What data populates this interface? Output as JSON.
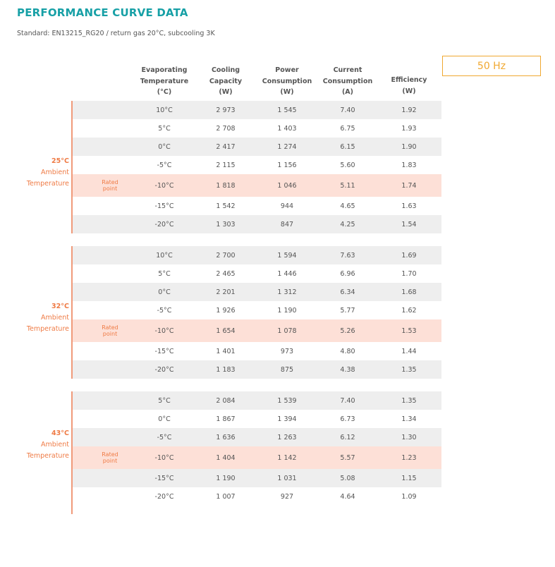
{
  "title": "PERFORMANCE CURVE DATA",
  "subtitle": "Standard: EN13215_RG20 / return gas 20°C, subcooling 3K",
  "frequency": "50 Hz",
  "rated_label": [
    "Rated",
    "point"
  ],
  "headers": [
    {
      "lines": [
        "Evaporating",
        "Temperature",
        "(°C)"
      ]
    },
    {
      "lines": [
        "Cooling",
        "Capacity",
        "(W)"
      ]
    },
    {
      "lines": [
        "Power",
        "Consumption",
        "(W)"
      ]
    },
    {
      "lines": [
        "Current",
        "Consumption",
        "(A)"
      ]
    },
    {
      "lines": [
        "Efficiency",
        "(W)"
      ]
    }
  ],
  "groups": [
    {
      "temp": "25°C",
      "label_lines": [
        "Ambient",
        "Temperature"
      ],
      "rows": [
        {
          "evap": "10°C",
          "cap": "2 973",
          "pow": "1 545",
          "cur": "7.40",
          "eff": "1.92",
          "rated": false
        },
        {
          "evap": "5°C",
          "cap": "2 708",
          "pow": "1 403",
          "cur": "6.75",
          "eff": "1.93",
          "rated": false
        },
        {
          "evap": "0°C",
          "cap": "2 417",
          "pow": "1 274",
          "cur": "6.15",
          "eff": "1.90",
          "rated": false
        },
        {
          "evap": "-5°C",
          "cap": "2 115",
          "pow": "1 156",
          "cur": "5.60",
          "eff": "1.83",
          "rated": false
        },
        {
          "evap": "-10°C",
          "cap": "1 818",
          "pow": "1 046",
          "cur": "5.11",
          "eff": "1.74",
          "rated": true
        },
        {
          "evap": "-15°C",
          "cap": "1 542",
          "pow": "944",
          "cur": "4.65",
          "eff": "1.63",
          "rated": false
        },
        {
          "evap": "-20°C",
          "cap": "1 303",
          "pow": "847",
          "cur": "4.25",
          "eff": "1.54",
          "rated": false
        }
      ]
    },
    {
      "temp": "32°C",
      "label_lines": [
        "Ambient",
        "Temperature"
      ],
      "rows": [
        {
          "evap": "10°C",
          "cap": "2 700",
          "pow": "1 594",
          "cur": "7.63",
          "eff": "1.69",
          "rated": false
        },
        {
          "evap": "5°C",
          "cap": "2 465",
          "pow": "1 446",
          "cur": "6.96",
          "eff": "1.70",
          "rated": false
        },
        {
          "evap": "0°C",
          "cap": "2 201",
          "pow": "1 312",
          "cur": "6.34",
          "eff": "1.68",
          "rated": false
        },
        {
          "evap": "-5°C",
          "cap": "1 926",
          "pow": "1 190",
          "cur": "5.77",
          "eff": "1.62",
          "rated": false
        },
        {
          "evap": "-10°C",
          "cap": "1 654",
          "pow": "1 078",
          "cur": "5.26",
          "eff": "1.53",
          "rated": true
        },
        {
          "evap": "-15°C",
          "cap": "1 401",
          "pow": "973",
          "cur": "4.80",
          "eff": "1.44",
          "rated": false
        },
        {
          "evap": "-20°C",
          "cap": "1 183",
          "pow": "875",
          "cur": "4.38",
          "eff": "1.35",
          "rated": false
        }
      ]
    },
    {
      "temp": "43°C",
      "label_lines": [
        "Ambient",
        "Temperature"
      ],
      "rows": [
        {
          "evap": "5°C",
          "cap": "2 084",
          "pow": "1 539",
          "cur": "7.40",
          "eff": "1.35",
          "rated": false
        },
        {
          "evap": "0°C",
          "cap": "1 867",
          "pow": "1 394",
          "cur": "6.73",
          "eff": "1.34",
          "rated": false
        },
        {
          "evap": "-5°C",
          "cap": "1 636",
          "pow": "1 263",
          "cur": "6.12",
          "eff": "1.30",
          "rated": false
        },
        {
          "evap": "-10°C",
          "cap": "1 404",
          "pow": "1 142",
          "cur": "5.57",
          "eff": "1.23",
          "rated": true
        },
        {
          "evap": "-15°C",
          "cap": "1 190",
          "pow": "1 031",
          "cur": "5.08",
          "eff": "1.15",
          "rated": false
        },
        {
          "evap": "-20°C",
          "cap": "1 007",
          "pow": "927",
          "cur": "4.64",
          "eff": "1.09",
          "rated": false
        }
      ]
    }
  ]
}
